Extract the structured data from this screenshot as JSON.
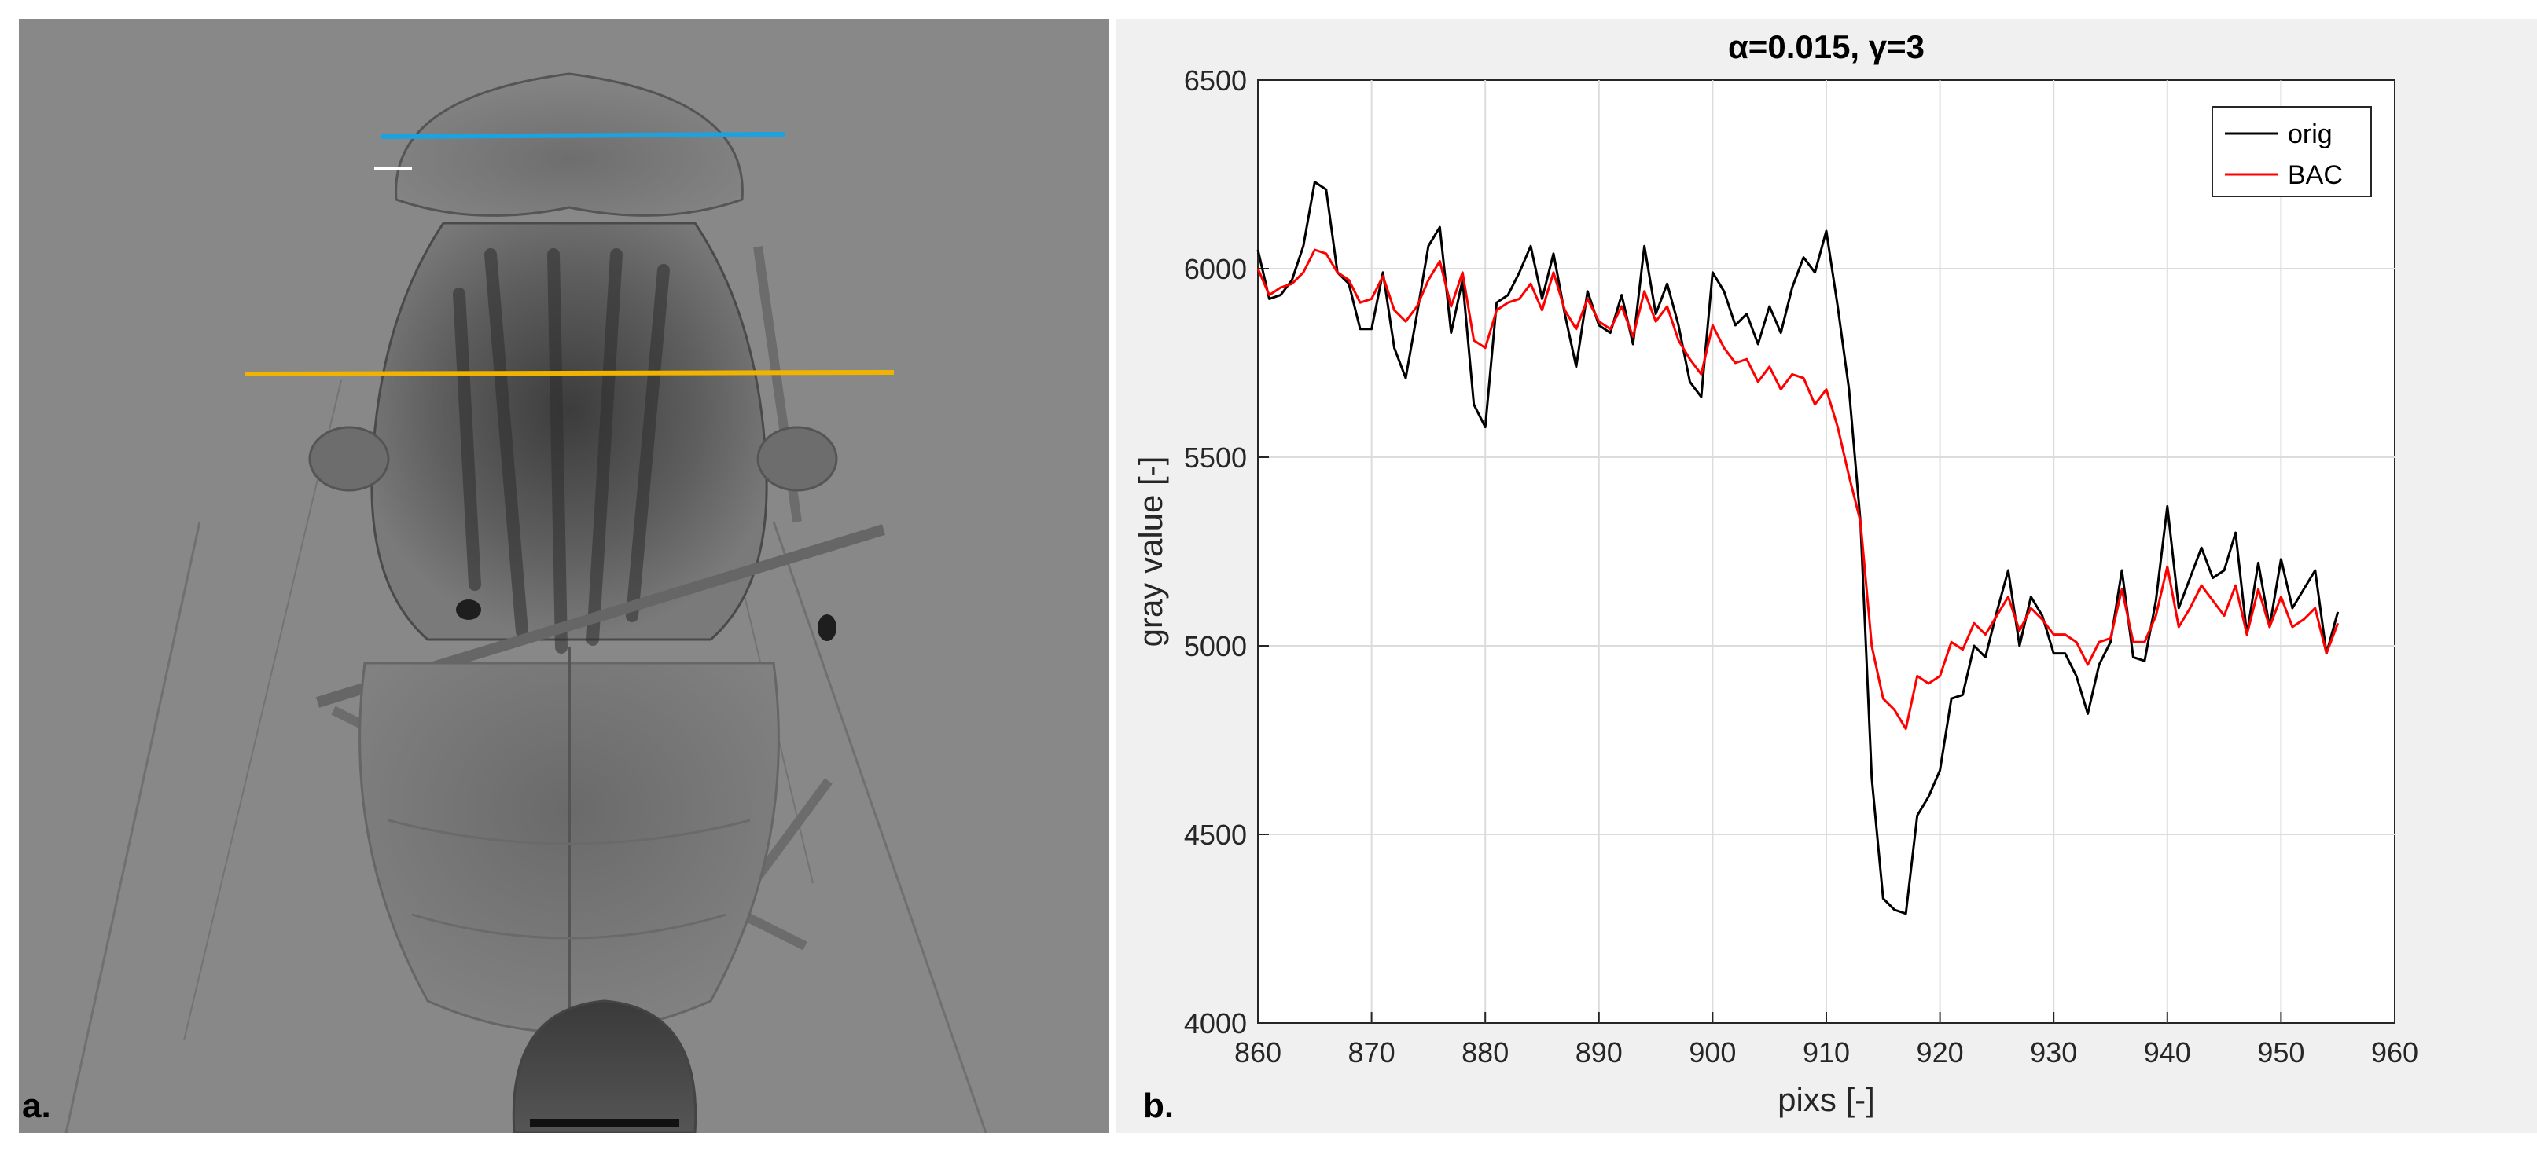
{
  "panels": {
    "a": {
      "label": "a."
    },
    "b": {
      "label": "b."
    }
  },
  "colors": {
    "xray_background": "#888888",
    "blue_line": "#1aa3e0",
    "orange_line": "#f0b400",
    "orig": "#000000",
    "bac": "#ff0000"
  },
  "chart_data": {
    "type": "line",
    "title": "α=0.015, γ=3",
    "xlabel": "pixs [-]",
    "ylabel": "gray value [-]",
    "xlim": [
      860,
      960
    ],
    "ylim": [
      4000,
      6500
    ],
    "xticks": [
      860,
      870,
      880,
      890,
      900,
      910,
      920,
      930,
      940,
      950,
      960
    ],
    "yticks": [
      4000,
      4500,
      5000,
      5500,
      6000,
      6500
    ],
    "grid": true,
    "legend_position": "top-right",
    "x": [
      860,
      861,
      862,
      863,
      864,
      865,
      866,
      867,
      868,
      869,
      870,
      871,
      872,
      873,
      874,
      875,
      876,
      877,
      878,
      879,
      880,
      881,
      882,
      883,
      884,
      885,
      886,
      887,
      888,
      889,
      890,
      891,
      892,
      893,
      894,
      895,
      896,
      897,
      898,
      899,
      900,
      901,
      902,
      903,
      904,
      905,
      906,
      907,
      908,
      909,
      910,
      911,
      912,
      913,
      914,
      915,
      916,
      917,
      918,
      919,
      920,
      921,
      922,
      923,
      924,
      925,
      926,
      927,
      928,
      929,
      930,
      931,
      932,
      933,
      934,
      935,
      936,
      937,
      938,
      939,
      940,
      941,
      942,
      943,
      944,
      945,
      946,
      947,
      948,
      949,
      950,
      951,
      952,
      953,
      954,
      955
    ],
    "series": [
      {
        "name": "orig",
        "color": "#000000",
        "values": [
          6050,
          5920,
          5930,
          5970,
          6060,
          6230,
          6210,
          5990,
          5960,
          5840,
          5840,
          5990,
          5790,
          5710,
          5880,
          6060,
          6110,
          5830,
          5970,
          5640,
          5580,
          5910,
          5930,
          5990,
          6060,
          5920,
          6040,
          5880,
          5740,
          5940,
          5850,
          5830,
          5930,
          5800,
          6060,
          5880,
          5960,
          5850,
          5700,
          5660,
          5990,
          5940,
          5850,
          5880,
          5800,
          5900,
          5830,
          5950,
          6030,
          5990,
          6100,
          5900,
          5680,
          5330,
          4650,
          4330,
          4300,
          4290,
          4550,
          4600,
          4670,
          4860,
          4870,
          5000,
          4970,
          5090,
          5200,
          5000,
          5130,
          5080,
          4980,
          4980,
          4920,
          4820,
          4950,
          5010,
          5200,
          4970,
          4960,
          5120,
          5370,
          5100,
          5180,
          5260,
          5180,
          5200,
          5300,
          5030,
          5220,
          5050,
          5230,
          5100,
          5150,
          5200,
          4980,
          5090
        ]
      },
      {
        "name": "BAC",
        "color": "#ff0000",
        "values": [
          6000,
          5930,
          5950,
          5960,
          5990,
          6050,
          6040,
          5990,
          5970,
          5910,
          5920,
          5980,
          5890,
          5860,
          5900,
          5970,
          6020,
          5900,
          5990,
          5810,
          5790,
          5890,
          5910,
          5920,
          5960,
          5890,
          5990,
          5890,
          5840,
          5920,
          5860,
          5840,
          5900,
          5820,
          5940,
          5860,
          5900,
          5810,
          5760,
          5720,
          5850,
          5790,
          5750,
          5760,
          5700,
          5740,
          5680,
          5720,
          5710,
          5640,
          5680,
          5580,
          5450,
          5330,
          5000,
          4860,
          4830,
          4780,
          4920,
          4900,
          4920,
          5010,
          4990,
          5060,
          5030,
          5080,
          5130,
          5040,
          5100,
          5070,
          5030,
          5030,
          5010,
          4950,
          5010,
          5020,
          5150,
          5010,
          5010,
          5080,
          5210,
          5050,
          5100,
          5160,
          5120,
          5080,
          5160,
          5030,
          5150,
          5050,
          5130,
          5050,
          5070,
          5100,
          4980,
          5060
        ]
      }
    ]
  }
}
